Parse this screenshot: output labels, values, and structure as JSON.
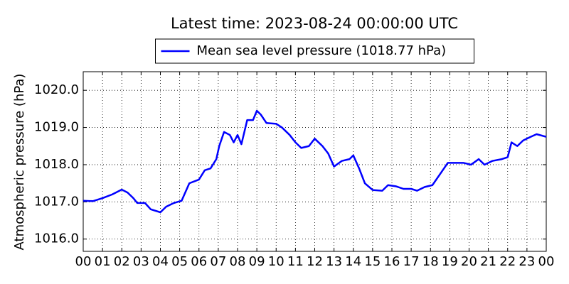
{
  "chart_data": {
    "type": "line",
    "title": "Latest time: 2023-08-24 00:00:00 UTC",
    "y_label": "Atmospheric pressure (hPa)",
    "legend": "upper center",
    "grid": true,
    "x": [
      0.0,
      0.5,
      1.0,
      1.5,
      2.0,
      2.3,
      2.6,
      2.8,
      3.2,
      3.5,
      4.0,
      4.3,
      4.7,
      5.1,
      5.5,
      6.0,
      6.3,
      6.6,
      6.9,
      7.05,
      7.3,
      7.6,
      7.8,
      8.0,
      8.2,
      8.5,
      8.8,
      9.0,
      9.2,
      9.5,
      10.0,
      10.3,
      10.7,
      11.0,
      11.3,
      11.7,
      12.0,
      12.4,
      12.7,
      13.0,
      13.4,
      13.8,
      14.0,
      14.3,
      14.6,
      15.0,
      15.5,
      15.8,
      16.2,
      16.6,
      17.0,
      17.3,
      17.7,
      18.1,
      18.5,
      18.9,
      19.3,
      19.7,
      20.1,
      20.5,
      20.8,
      21.2,
      21.7,
      22.0,
      22.2,
      22.5,
      22.8,
      23.2,
      23.5,
      24.0
    ],
    "series": [
      {
        "name": "Mean sea level pressure (1018.77 hPa)",
        "color": "#0000ff",
        "values": [
          1017.03,
          1017.02,
          1017.1,
          1017.2,
          1017.33,
          1017.25,
          1017.1,
          1016.97,
          1016.97,
          1016.8,
          1016.72,
          1016.87,
          1016.97,
          1017.03,
          1017.5,
          1017.6,
          1017.85,
          1017.9,
          1018.15,
          1018.5,
          1018.88,
          1018.8,
          1018.6,
          1018.8,
          1018.55,
          1019.2,
          1019.2,
          1019.45,
          1019.35,
          1019.12,
          1019.1,
          1019.0,
          1018.8,
          1018.6,
          1018.45,
          1018.5,
          1018.7,
          1018.5,
          1018.3,
          1017.95,
          1018.1,
          1018.15,
          1018.25,
          1017.9,
          1017.5,
          1017.32,
          1017.3,
          1017.45,
          1017.42,
          1017.35,
          1017.35,
          1017.3,
          1017.4,
          1017.45,
          1017.75,
          1018.05,
          1018.05,
          1018.05,
          1018.0,
          1018.15,
          1018.0,
          1018.1,
          1018.15,
          1018.2,
          1018.6,
          1018.5,
          1018.65,
          1018.75,
          1018.82,
          1018.75
        ]
      }
    ],
    "xlim": [
      0,
      24
    ],
    "xticks": [
      {
        "value": 0,
        "label": "00"
      },
      {
        "value": 1,
        "label": "01"
      },
      {
        "value": 2,
        "label": "02"
      },
      {
        "value": 3,
        "label": "03"
      },
      {
        "value": 4,
        "label": "04"
      },
      {
        "value": 5,
        "label": "05"
      },
      {
        "value": 6,
        "label": "06"
      },
      {
        "value": 7,
        "label": "07"
      },
      {
        "value": 8,
        "label": "08"
      },
      {
        "value": 9,
        "label": "09"
      },
      {
        "value": 10,
        "label": "10"
      },
      {
        "value": 11,
        "label": "11"
      },
      {
        "value": 12,
        "label": "12"
      },
      {
        "value": 13,
        "label": "13"
      },
      {
        "value": 14,
        "label": "14"
      },
      {
        "value": 15,
        "label": "15"
      },
      {
        "value": 16,
        "label": "16"
      },
      {
        "value": 17,
        "label": "17"
      },
      {
        "value": 18,
        "label": "18"
      },
      {
        "value": 19,
        "label": "19"
      },
      {
        "value": 20,
        "label": "20"
      },
      {
        "value": 21,
        "label": "21"
      },
      {
        "value": 22,
        "label": "22"
      },
      {
        "value": 23,
        "label": "23"
      },
      {
        "value": 24,
        "label": "00"
      }
    ],
    "ylim": [
      1015.67,
      1020.5
    ],
    "yticks": [
      {
        "value": 1016,
        "label": "1016.0"
      },
      {
        "value": 1017,
        "label": "1017.0"
      },
      {
        "value": 1018,
        "label": "1018.0"
      },
      {
        "value": 1019,
        "label": "1019.0"
      },
      {
        "value": 1020,
        "label": "1020.0"
      }
    ]
  }
}
